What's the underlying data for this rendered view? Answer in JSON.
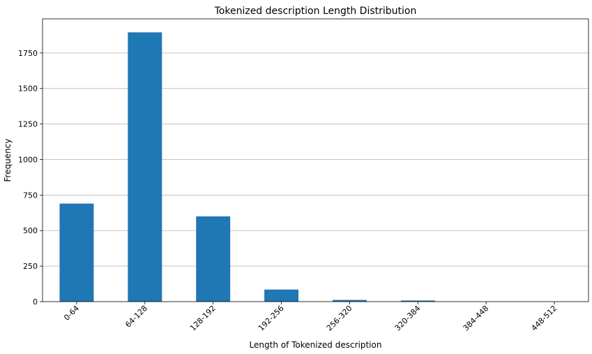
{
  "chart_data": {
    "type": "bar",
    "title": "Tokenized description Length Distribution",
    "xlabel": "Length of Tokenized description",
    "ylabel": "Frequency",
    "categories": [
      "0-64",
      "64-128",
      "128-192",
      "192-256",
      "256-320",
      "320-384",
      "384-448",
      "448-512"
    ],
    "values": [
      690,
      1895,
      600,
      85,
      12,
      8,
      0,
      0
    ],
    "ylim": [
      0,
      1990
    ],
    "yticks": [
      0,
      250,
      500,
      750,
      1000,
      1250,
      1500,
      1750
    ],
    "grid": "y",
    "legend": "none",
    "bar_color": "#1f77b4",
    "grid_color": "#b0b0b0"
  }
}
